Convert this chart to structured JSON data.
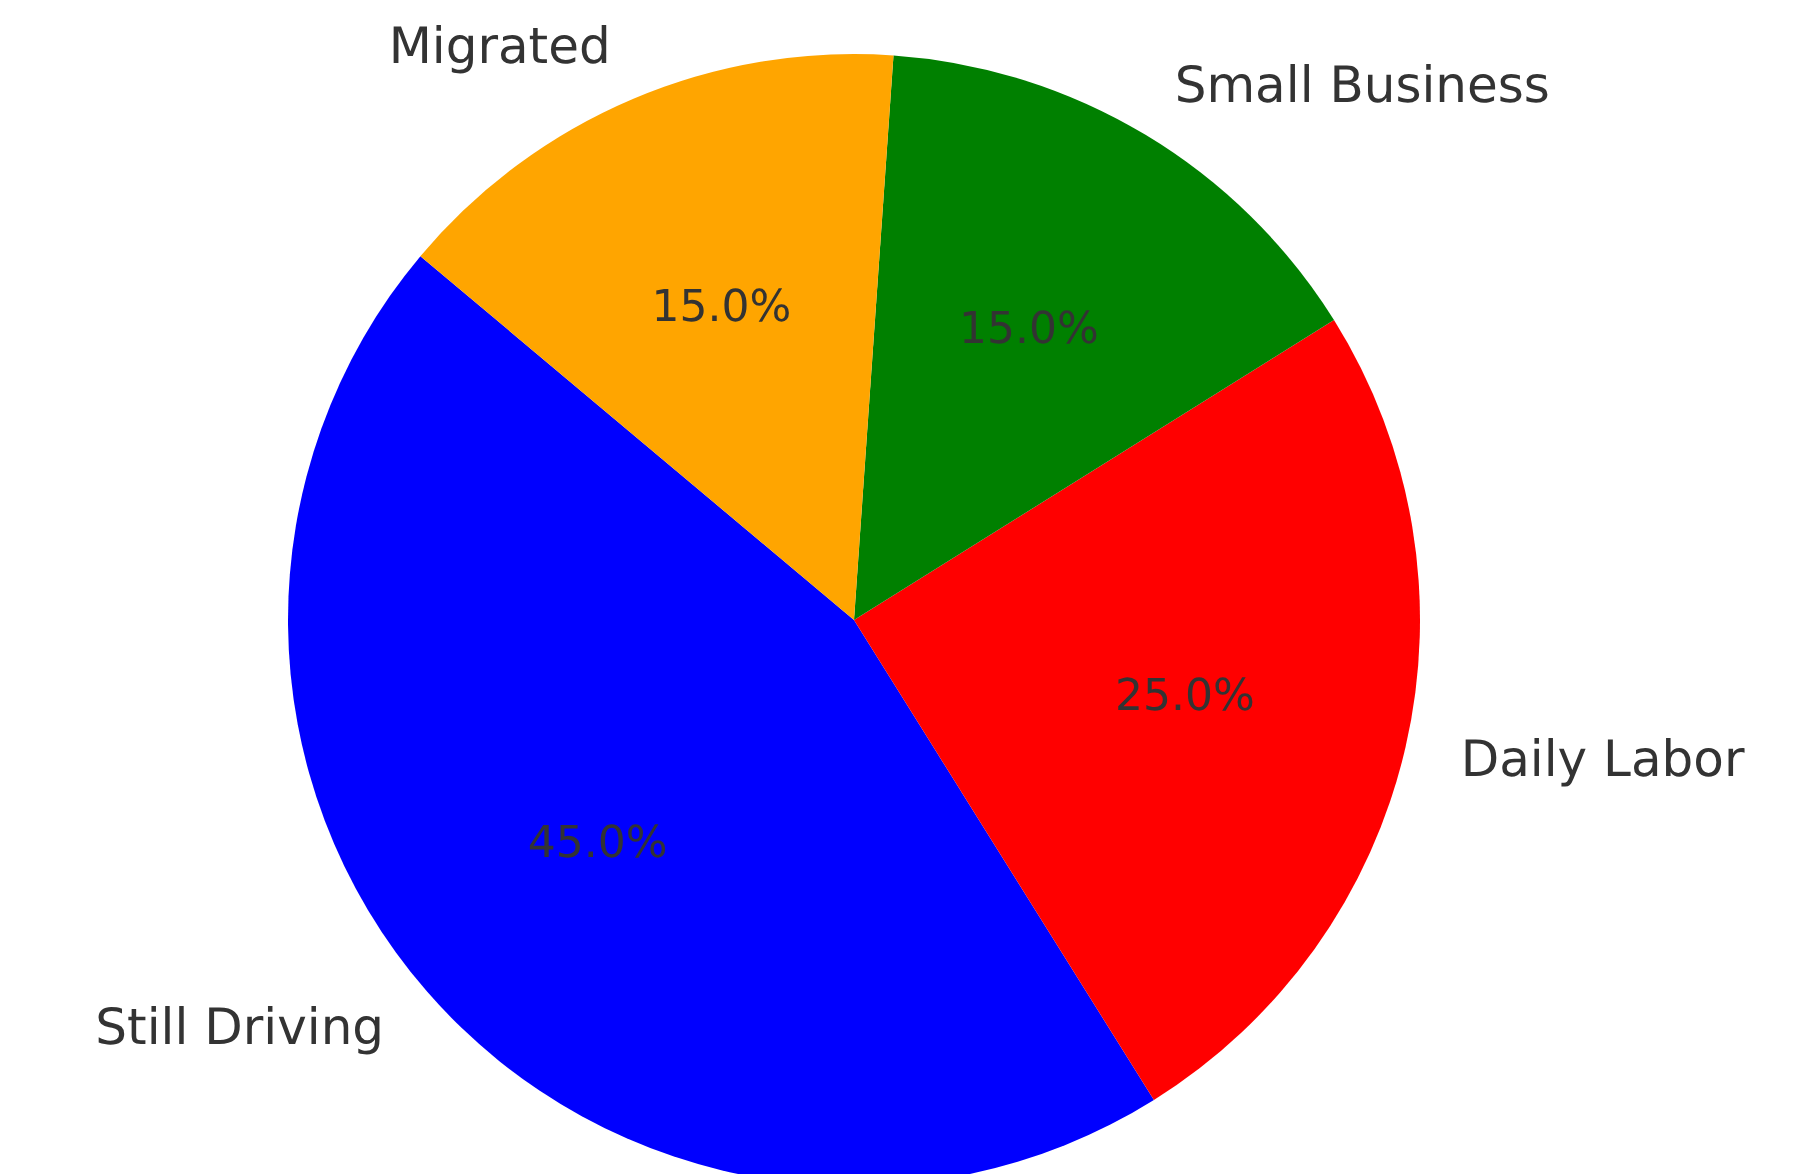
{
  "chart_data": {
    "type": "pie",
    "categories": [
      "Still Driving",
      "Daily Labor",
      "Small Business",
      "Migrated"
    ],
    "values": [
      45,
      25,
      15,
      15
    ],
    "colors": [
      "#0000ff",
      "#ff0000",
      "#008000",
      "#ffa500"
    ],
    "value_labels": [
      "45.0%",
      "25.0%",
      "15.0%",
      "15.0%"
    ]
  }
}
